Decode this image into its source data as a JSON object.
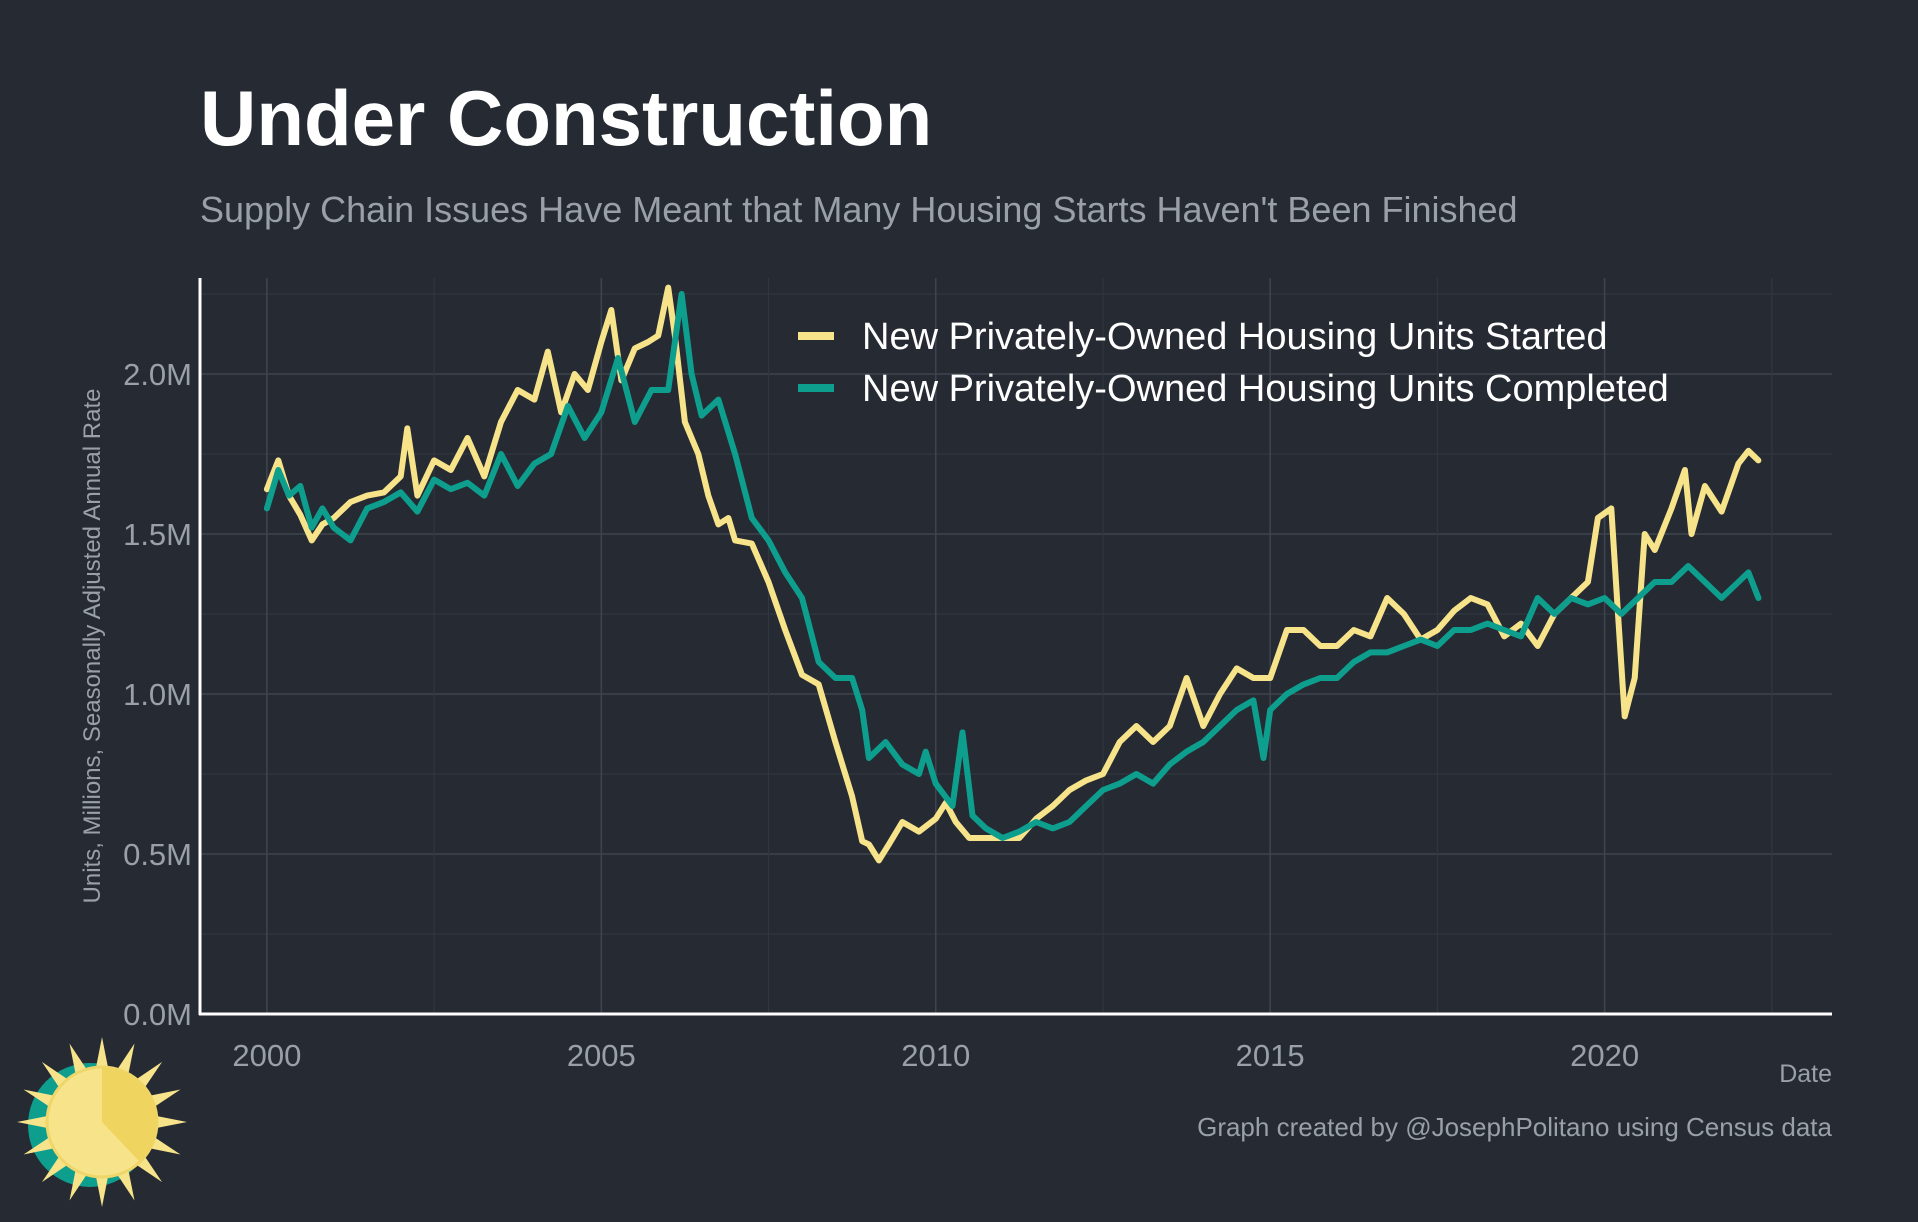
{
  "chart_data": {
    "type": "line",
    "title": "Under Construction",
    "subtitle": "Supply Chain Issues Have Meant that Many Housing Starts Haven't Been Finished",
    "xlabel": "Date",
    "ylabel": "Units, Millions, Seasonally Adjusted Annual Rate",
    "caption": "Graph created by @JosephPolitano using Census data",
    "xlim": [
      1999,
      2023.4
    ],
    "ylim": [
      0,
      2.3
    ],
    "x_ticks": [
      2000,
      2005,
      2010,
      2015,
      2020
    ],
    "x_tick_labels": [
      "2000",
      "2005",
      "2010",
      "2015",
      "2020"
    ],
    "y_ticks": [
      0,
      0.5,
      1.0,
      1.5,
      2.0
    ],
    "y_tick_labels": [
      "0.0M",
      "0.5M",
      "1.0M",
      "1.5M",
      "2.0M"
    ],
    "grid": true,
    "legend_position": "top-right",
    "series": [
      {
        "name": "New Privately-Owned Housing Units Started",
        "color": "#f7e38a",
        "points": [
          [
            2000.0,
            1.64
          ],
          [
            2000.17,
            1.73
          ],
          [
            2000.33,
            1.62
          ],
          [
            2000.5,
            1.56
          ],
          [
            2000.67,
            1.48
          ],
          [
            2000.83,
            1.53
          ],
          [
            2001.0,
            1.55
          ],
          [
            2001.25,
            1.6
          ],
          [
            2001.5,
            1.62
          ],
          [
            2001.75,
            1.63
          ],
          [
            2002.0,
            1.68
          ],
          [
            2002.1,
            1.83
          ],
          [
            2002.25,
            1.62
          ],
          [
            2002.5,
            1.73
          ],
          [
            2002.75,
            1.7
          ],
          [
            2003.0,
            1.8
          ],
          [
            2003.25,
            1.68
          ],
          [
            2003.5,
            1.85
          ],
          [
            2003.75,
            1.95
          ],
          [
            2004.0,
            1.92
          ],
          [
            2004.2,
            2.07
          ],
          [
            2004.4,
            1.88
          ],
          [
            2004.6,
            2.0
          ],
          [
            2004.8,
            1.95
          ],
          [
            2005.0,
            2.1
          ],
          [
            2005.15,
            2.2
          ],
          [
            2005.3,
            1.98
          ],
          [
            2005.5,
            2.08
          ],
          [
            2005.7,
            2.1
          ],
          [
            2005.85,
            2.12
          ],
          [
            2006.0,
            2.27
          ],
          [
            2006.1,
            2.12
          ],
          [
            2006.25,
            1.85
          ],
          [
            2006.45,
            1.75
          ],
          [
            2006.6,
            1.62
          ],
          [
            2006.75,
            1.53
          ],
          [
            2006.9,
            1.55
          ],
          [
            2007.0,
            1.48
          ],
          [
            2007.25,
            1.47
          ],
          [
            2007.5,
            1.35
          ],
          [
            2007.75,
            1.2
          ],
          [
            2008.0,
            1.06
          ],
          [
            2008.25,
            1.03
          ],
          [
            2008.5,
            0.85
          ],
          [
            2008.75,
            0.68
          ],
          [
            2008.9,
            0.54
          ],
          [
            2009.0,
            0.53
          ],
          [
            2009.15,
            0.48
          ],
          [
            2009.3,
            0.53
          ],
          [
            2009.5,
            0.6
          ],
          [
            2009.75,
            0.57
          ],
          [
            2010.0,
            0.61
          ],
          [
            2010.15,
            0.66
          ],
          [
            2010.3,
            0.6
          ],
          [
            2010.5,
            0.55
          ],
          [
            2010.75,
            0.55
          ],
          [
            2011.0,
            0.55
          ],
          [
            2011.25,
            0.55
          ],
          [
            2011.5,
            0.61
          ],
          [
            2011.75,
            0.65
          ],
          [
            2012.0,
            0.7
          ],
          [
            2012.25,
            0.73
          ],
          [
            2012.5,
            0.75
          ],
          [
            2012.75,
            0.85
          ],
          [
            2013.0,
            0.9
          ],
          [
            2013.25,
            0.85
          ],
          [
            2013.5,
            0.9
          ],
          [
            2013.75,
            1.05
          ],
          [
            2014.0,
            0.9
          ],
          [
            2014.25,
            1.0
          ],
          [
            2014.5,
            1.08
          ],
          [
            2014.75,
            1.05
          ],
          [
            2015.0,
            1.05
          ],
          [
            2015.25,
            1.2
          ],
          [
            2015.5,
            1.2
          ],
          [
            2015.75,
            1.15
          ],
          [
            2016.0,
            1.15
          ],
          [
            2016.25,
            1.2
          ],
          [
            2016.5,
            1.18
          ],
          [
            2016.75,
            1.3
          ],
          [
            2017.0,
            1.25
          ],
          [
            2017.25,
            1.17
          ],
          [
            2017.5,
            1.2
          ],
          [
            2017.75,
            1.26
          ],
          [
            2018.0,
            1.3
          ],
          [
            2018.25,
            1.28
          ],
          [
            2018.5,
            1.18
          ],
          [
            2018.75,
            1.22
          ],
          [
            2019.0,
            1.15
          ],
          [
            2019.25,
            1.25
          ],
          [
            2019.5,
            1.3
          ],
          [
            2019.75,
            1.35
          ],
          [
            2019.9,
            1.55
          ],
          [
            2020.1,
            1.58
          ],
          [
            2020.2,
            1.25
          ],
          [
            2020.3,
            0.93
          ],
          [
            2020.45,
            1.05
          ],
          [
            2020.6,
            1.5
          ],
          [
            2020.75,
            1.45
          ],
          [
            2021.0,
            1.58
          ],
          [
            2021.2,
            1.7
          ],
          [
            2021.3,
            1.5
          ],
          [
            2021.5,
            1.65
          ],
          [
            2021.75,
            1.57
          ],
          [
            2022.0,
            1.72
          ],
          [
            2022.15,
            1.76
          ],
          [
            2022.3,
            1.73
          ]
        ]
      },
      {
        "name": "New Privately-Owned Housing Units Completed",
        "color": "#0e9e8e",
        "points": [
          [
            2000.0,
            1.58
          ],
          [
            2000.17,
            1.7
          ],
          [
            2000.33,
            1.62
          ],
          [
            2000.5,
            1.65
          ],
          [
            2000.67,
            1.52
          ],
          [
            2000.83,
            1.58
          ],
          [
            2001.0,
            1.52
          ],
          [
            2001.25,
            1.48
          ],
          [
            2001.5,
            1.58
          ],
          [
            2001.75,
            1.6
          ],
          [
            2002.0,
            1.63
          ],
          [
            2002.25,
            1.57
          ],
          [
            2002.5,
            1.67
          ],
          [
            2002.75,
            1.64
          ],
          [
            2003.0,
            1.66
          ],
          [
            2003.25,
            1.62
          ],
          [
            2003.5,
            1.75
          ],
          [
            2003.75,
            1.65
          ],
          [
            2004.0,
            1.72
          ],
          [
            2004.25,
            1.75
          ],
          [
            2004.5,
            1.9
          ],
          [
            2004.75,
            1.8
          ],
          [
            2005.0,
            1.88
          ],
          [
            2005.25,
            2.05
          ],
          [
            2005.5,
            1.85
          ],
          [
            2005.75,
            1.95
          ],
          [
            2006.0,
            1.95
          ],
          [
            2006.2,
            2.25
          ],
          [
            2006.35,
            2.0
          ],
          [
            2006.5,
            1.87
          ],
          [
            2006.75,
            1.92
          ],
          [
            2007.0,
            1.75
          ],
          [
            2007.25,
            1.55
          ],
          [
            2007.5,
            1.48
          ],
          [
            2007.75,
            1.38
          ],
          [
            2008.0,
            1.3
          ],
          [
            2008.25,
            1.1
          ],
          [
            2008.5,
            1.05
          ],
          [
            2008.75,
            1.05
          ],
          [
            2008.9,
            0.95
          ],
          [
            2009.0,
            0.8
          ],
          [
            2009.25,
            0.85
          ],
          [
            2009.5,
            0.78
          ],
          [
            2009.75,
            0.75
          ],
          [
            2009.85,
            0.82
          ],
          [
            2010.0,
            0.72
          ],
          [
            2010.25,
            0.65
          ],
          [
            2010.4,
            0.88
          ],
          [
            2010.55,
            0.62
          ],
          [
            2010.75,
            0.58
          ],
          [
            2011.0,
            0.55
          ],
          [
            2011.25,
            0.57
          ],
          [
            2011.5,
            0.6
          ],
          [
            2011.75,
            0.58
          ],
          [
            2012.0,
            0.6
          ],
          [
            2012.25,
            0.65
          ],
          [
            2012.5,
            0.7
          ],
          [
            2012.75,
            0.72
          ],
          [
            2013.0,
            0.75
          ],
          [
            2013.25,
            0.72
          ],
          [
            2013.5,
            0.78
          ],
          [
            2013.75,
            0.82
          ],
          [
            2014.0,
            0.85
          ],
          [
            2014.25,
            0.9
          ],
          [
            2014.5,
            0.95
          ],
          [
            2014.75,
            0.98
          ],
          [
            2014.9,
            0.8
          ],
          [
            2015.0,
            0.95
          ],
          [
            2015.25,
            1.0
          ],
          [
            2015.5,
            1.03
          ],
          [
            2015.75,
            1.05
          ],
          [
            2016.0,
            1.05
          ],
          [
            2016.25,
            1.1
          ],
          [
            2016.5,
            1.13
          ],
          [
            2016.75,
            1.13
          ],
          [
            2017.0,
            1.15
          ],
          [
            2017.25,
            1.17
          ],
          [
            2017.5,
            1.15
          ],
          [
            2017.75,
            1.2
          ],
          [
            2018.0,
            1.2
          ],
          [
            2018.25,
            1.22
          ],
          [
            2018.5,
            1.2
          ],
          [
            2018.75,
            1.18
          ],
          [
            2019.0,
            1.3
          ],
          [
            2019.25,
            1.25
          ],
          [
            2019.5,
            1.3
          ],
          [
            2019.75,
            1.28
          ],
          [
            2020.0,
            1.3
          ],
          [
            2020.25,
            1.25
          ],
          [
            2020.5,
            1.3
          ],
          [
            2020.75,
            1.35
          ],
          [
            2021.0,
            1.35
          ],
          [
            2021.25,
            1.4
          ],
          [
            2021.5,
            1.35
          ],
          [
            2021.75,
            1.3
          ],
          [
            2022.0,
            1.35
          ],
          [
            2022.15,
            1.38
          ],
          [
            2022.3,
            1.3
          ]
        ]
      }
    ]
  }
}
